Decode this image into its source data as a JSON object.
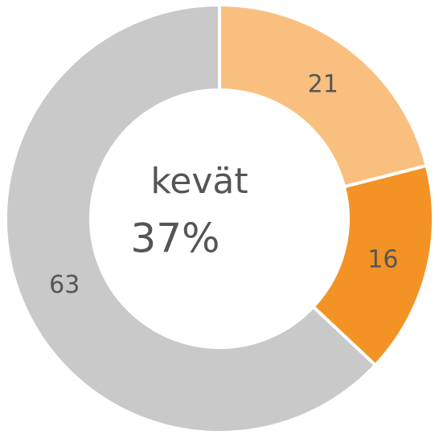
{
  "chart_data": {
    "type": "donut",
    "categories": [
      "",
      "",
      ""
    ],
    "values": [
      21,
      16,
      63
    ],
    "colors": [
      "#f9bf7f",
      "#f39325",
      "#c9c9c9"
    ],
    "center_label": "kevät",
    "center_value": "37%"
  }
}
